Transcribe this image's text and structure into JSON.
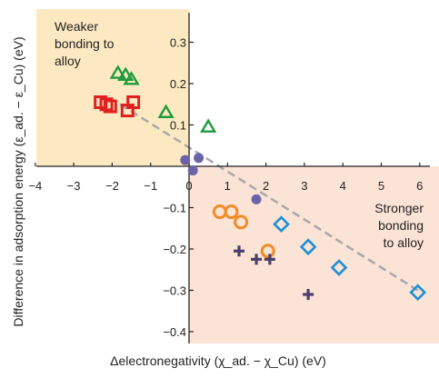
{
  "chart_data": {
    "type": "scatter",
    "xlabel": "Δelectronegativity (χ_ad. − χ_Cu) (eV)",
    "ylabel": "Difference in adsorption energy (ε_ad. − ε_Cu) (eV)",
    "xlim": [
      -4,
      6
    ],
    "ylim": [
      -0.4,
      0.35
    ],
    "x_ticks": [
      "−4",
      "−3",
      "−2",
      "−1",
      "0",
      "1",
      "2",
      "3",
      "4",
      "5",
      "6"
    ],
    "y_ticks": [
      "0.3",
      "0.2",
      "0.1",
      "−0.1",
      "−0.2",
      "−0.3",
      "−0.4"
    ],
    "regions": [
      {
        "quadrant": "top-left",
        "color": "#fde9c1",
        "label": [
          "Weaker",
          "bonding to",
          "alloy"
        ]
      },
      {
        "quadrant": "bottom-right",
        "color": "#fbe3d6",
        "label": [
          "Stronger",
          "bonding",
          "to alloy"
        ]
      }
    ],
    "trend_line": {
      "from": [
        -1.8,
        0.15
      ],
      "to": [
        5.95,
        -0.3
      ],
      "color": "#a8a8a8",
      "style": "dashed"
    },
    "series": [
      {
        "marker": "triangle",
        "color": "#1f9a3c",
        "x": [
          -1.85,
          -1.65,
          -1.5,
          -0.6,
          0.5
        ],
        "y": [
          0.225,
          0.22,
          0.21,
          0.13,
          0.095
        ]
      },
      {
        "marker": "square",
        "color": "#e02020",
        "x": [
          -2.3,
          -2.15,
          -2.05,
          -1.6,
          -1.45
        ],
        "y": [
          0.155,
          0.15,
          0.145,
          0.135,
          0.155
        ]
      },
      {
        "marker": "dot",
        "color": "#6b63a8",
        "x": [
          -0.1,
          0.25,
          0.1,
          1.75
        ],
        "y": [
          0.015,
          0.02,
          -0.01,
          -0.08
        ]
      },
      {
        "marker": "circle",
        "color": "#f08c2a",
        "x": [
          0.8,
          1.1,
          1.35,
          2.05
        ],
        "y": [
          -0.11,
          -0.11,
          -0.135,
          -0.205
        ]
      },
      {
        "marker": "plus",
        "color": "#4a3f6b",
        "x": [
          1.3,
          1.75,
          2.1,
          3.1
        ],
        "y": [
          -0.205,
          -0.225,
          -0.225,
          -0.31
        ]
      },
      {
        "marker": "diamond",
        "color": "#1f8fd6",
        "x": [
          2.4,
          3.1,
          3.9,
          5.95
        ],
        "y": [
          -0.14,
          -0.195,
          -0.245,
          -0.305
        ]
      }
    ]
  },
  "labels": {
    "top_left": [
      "Weaker",
      "bonding to",
      "alloy"
    ],
    "bottom_right": [
      "Stronger",
      "bonding",
      "to alloy"
    ],
    "x_axis_label": "Δelectronegativity (χ_ad. − χ_Cu) (eV)",
    "y_axis_label": "Difference in adsorption energy (ε_ad. − ε_Cu) (eV)"
  }
}
